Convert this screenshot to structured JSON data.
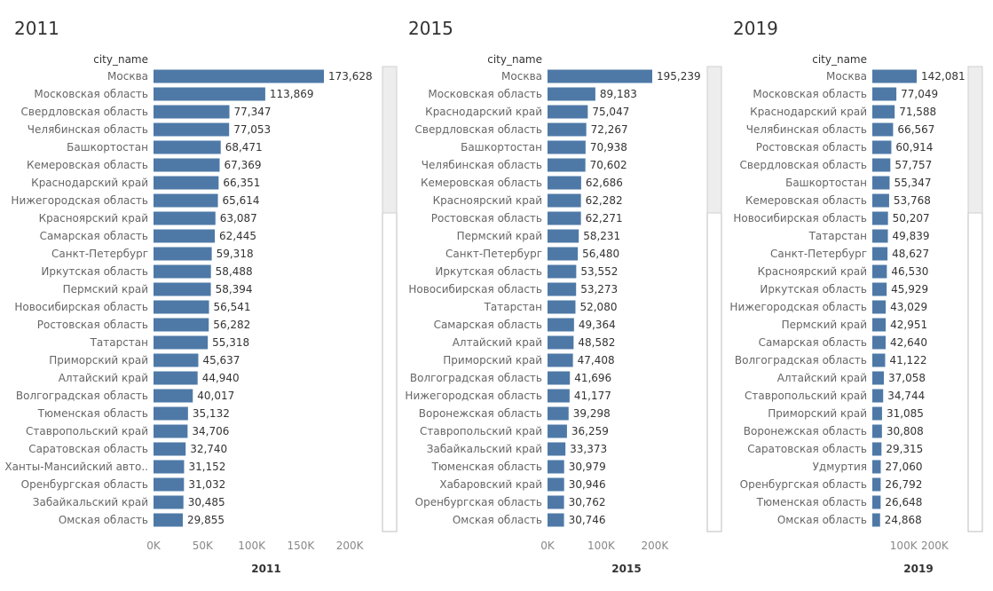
{
  "chart_data": [
    {
      "type": "bar",
      "orientation": "horizontal",
      "title": "2011",
      "row_header": "city_name",
      "xlabel": "2011",
      "xlim": [
        0,
        230000
      ],
      "xticks": [
        "0K",
        "50K",
        "100K",
        "150K",
        "200K"
      ],
      "bar_color": "#4e79a7",
      "categories": [
        "Москва",
        "Московская область",
        "Свердловская область",
        "Челябинская область",
        "Башкортостан",
        "Кемеровская область",
        "Краснодарский край",
        "Нижегородская область",
        "Красноярский край",
        "Самарская область",
        "Санкт-Петербург",
        "Иркутская область",
        "Пермский край",
        "Новосибирская область",
        "Ростовская область",
        "Татарстан",
        "Приморский край",
        "Алтайский край",
        "Волгоградская область",
        "Тюменская область",
        "Ставропольский край",
        "Саратовская область",
        "Ханты-Мансийский авто..",
        "Оренбургская область",
        "Забайкальский край",
        "Омская область"
      ],
      "values": [
        173628,
        113869,
        77347,
        77053,
        68471,
        67369,
        66351,
        65614,
        63087,
        62445,
        59318,
        58488,
        58394,
        56541,
        56282,
        55318,
        45637,
        44940,
        40017,
        35132,
        34706,
        32740,
        31152,
        31032,
        30485,
        29855
      ],
      "value_labels": [
        "173,628",
        "113,869",
        "77,347",
        "77,053",
        "68,471",
        "67,369",
        "66,351",
        "65,614",
        "63,087",
        "62,445",
        "59,318",
        "58,488",
        "58,394",
        "56,541",
        "56,282",
        "55,318",
        "45,637",
        "44,940",
        "40,017",
        "35,132",
        "34,706",
        "32,740",
        "31,152",
        "31,032",
        "30,485",
        "29,855"
      ]
    },
    {
      "type": "bar",
      "orientation": "horizontal",
      "title": "2015",
      "row_header": "city_name",
      "xlabel": "2015",
      "xlim": [
        0,
        230000
      ],
      "xticks": [
        "0K",
        "100K",
        "200K"
      ],
      "bar_color": "#4e79a7",
      "categories": [
        "Москва",
        "Московская область",
        "Краснодарский край",
        "Свердловская область",
        "Башкортостан",
        "Челябинская область",
        "Кемеровская область",
        "Красноярский край",
        "Ростовская область",
        "Пермский край",
        "Санкт-Петербург",
        "Иркутская область",
        "Новосибирская область",
        "Татарстан",
        "Самарская область",
        "Алтайский край",
        "Приморский край",
        "Волгоградская область",
        "Нижегородская область",
        "Воронежская область",
        "Ставропольский край",
        "Забайкальский край",
        "Тюменская область",
        "Хабаровский край",
        "Оренбургская область",
        "Омская область"
      ],
      "values": [
        195239,
        89183,
        75047,
        72267,
        70938,
        70602,
        62686,
        62282,
        62271,
        58231,
        56480,
        53552,
        53273,
        52080,
        49364,
        48582,
        47408,
        41696,
        41177,
        39298,
        36259,
        33373,
        30979,
        30946,
        30762,
        30746
      ],
      "value_labels": [
        "195,239",
        "89,183",
        "75,047",
        "72,267",
        "70,938",
        "70,602",
        "62,686",
        "62,282",
        "62,271",
        "58,231",
        "56,480",
        "53,552",
        "53,273",
        "52,080",
        "49,364",
        "48,582",
        "47,408",
        "41,696",
        "41,177",
        "39,298",
        "36,259",
        "33,373",
        "30,979",
        "30,946",
        "30,762",
        "30,746"
      ]
    },
    {
      "type": "bar",
      "orientation": "horizontal",
      "title": "2019",
      "row_header": "city_name",
      "xlabel": "2019",
      "xlim": [
        0,
        230000
      ],
      "xticks": [
        "100K",
        "200K"
      ],
      "bar_color": "#4e79a7",
      "categories": [
        "Москва",
        "Московская область",
        "Краснодарский край",
        "Челябинская область",
        "Ростовская область",
        "Свердловская область",
        "Башкортостан",
        "Кемеровская область",
        "Новосибирская область",
        "Татарстан",
        "Санкт-Петербург",
        "Красноярский край",
        "Иркутская область",
        "Нижегородская область",
        "Пермский край",
        "Самарская область",
        "Волгоградская область",
        "Алтайский край",
        "Ставропольский край",
        "Приморский край",
        "Воронежская область",
        "Саратовская область",
        "Удмуртия",
        "Оренбургская область",
        "Тюменская область",
        "Омская область"
      ],
      "values": [
        142081,
        77049,
        71588,
        66567,
        60914,
        57757,
        55347,
        53768,
        50207,
        49839,
        48627,
        46530,
        45929,
        43029,
        42951,
        42640,
        41122,
        37058,
        34744,
        31085,
        30808,
        29315,
        27060,
        26792,
        26648,
        24868
      ],
      "value_labels": [
        "142,081",
        "77,049",
        "71,588",
        "66,567",
        "60,914",
        "57,757",
        "55,347",
        "53,768",
        "50,207",
        "49,839",
        "48,627",
        "46,530",
        "45,929",
        "43,029",
        "42,951",
        "42,640",
        "41,122",
        "37,058",
        "34,744",
        "31,085",
        "30,808",
        "29,315",
        "27,060",
        "26,792",
        "26,648",
        "24,868"
      ]
    }
  ]
}
